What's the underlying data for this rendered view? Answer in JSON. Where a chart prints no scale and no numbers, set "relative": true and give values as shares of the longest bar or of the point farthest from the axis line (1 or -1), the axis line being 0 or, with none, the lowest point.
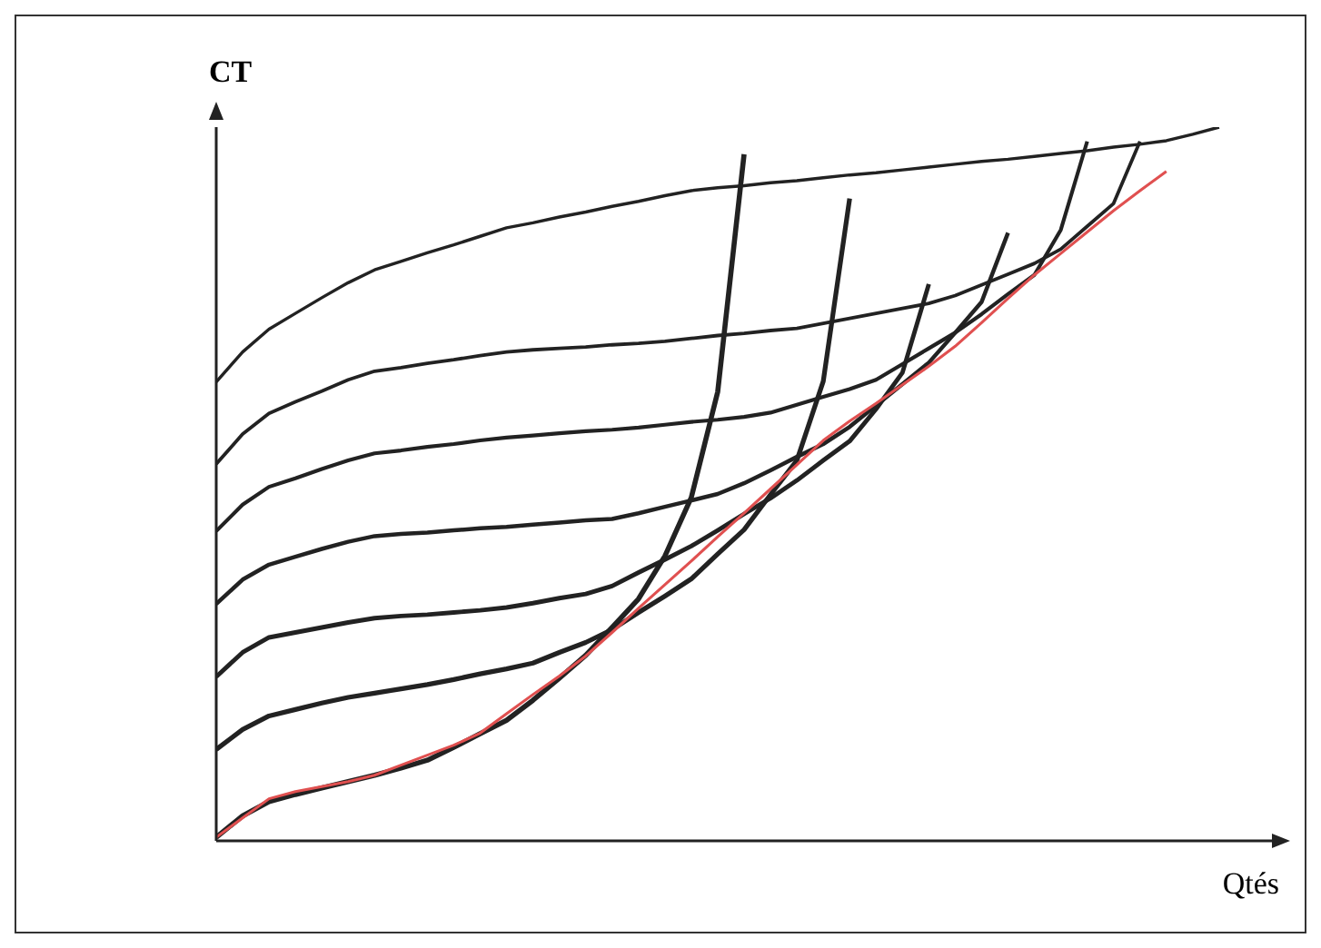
{
  "chart_data": {
    "type": "line",
    "xlabel": "Qtés",
    "ylabel": "CT",
    "relative": true,
    "marker": "none",
    "categories": [
      null,
      null,
      null,
      null,
      null,
      null,
      null,
      null,
      null,
      null,
      null,
      null,
      null,
      null,
      null,
      null,
      null,
      null,
      null,
      null,
      null,
      null,
      null,
      null,
      null,
      null,
      null,
      null,
      null,
      null,
      null,
      null,
      null,
      null,
      null,
      null,
      null,
      null,
      null,
      null,
      null
    ],
    "series": [
      {
        "color": "#222222",
        "values": [
          0.005,
          0.035,
          0.055,
          0.065,
          0.074,
          0.083,
          0.092,
          0.102,
          0.113,
          0.131,
          0.15,
          0.169,
          0.197,
          0.228,
          0.26,
          0.299,
          0.339,
          0.399,
          0.481,
          0.629,
          0.962,
          null,
          null,
          null,
          null,
          null,
          null,
          null,
          null,
          null,
          null,
          null,
          null,
          null,
          null,
          null,
          null,
          null,
          null,
          null,
          null
        ]
      },
      {
        "color": "#222222",
        "values": [
          0.128,
          0.156,
          0.175,
          0.184,
          0.193,
          0.201,
          0.207,
          0.213,
          0.219,
          0.226,
          0.234,
          0.241,
          0.249,
          0.264,
          0.278,
          0.296,
          0.32,
          0.343,
          0.367,
          0.402,
          0.436,
          0.485,
          0.533,
          0.644,
          0.9,
          null,
          null,
          null,
          null,
          null,
          null,
          null,
          null,
          null,
          null,
          null,
          null,
          null,
          null,
          null,
          null
        ]
      },
      {
        "color": "#222222",
        "values": [
          0.23,
          0.264,
          0.285,
          0.292,
          0.299,
          0.306,
          0.312,
          0.315,
          0.317,
          0.32,
          0.323,
          0.327,
          0.333,
          0.34,
          0.346,
          0.357,
          0.376,
          0.394,
          0.413,
          0.435,
          0.458,
          0.48,
          0.505,
          0.533,
          0.56,
          0.605,
          0.656,
          0.78,
          null,
          null,
          null,
          null,
          null,
          null,
          null,
          null,
          null,
          null,
          null,
          null,
          null
        ]
      },
      {
        "color": "#222222",
        "values": [
          0.332,
          0.366,
          0.387,
          0.398,
          0.409,
          0.419,
          0.427,
          0.43,
          0.432,
          0.435,
          0.438,
          0.44,
          0.443,
          0.446,
          0.449,
          0.451,
          0.459,
          0.468,
          0.477,
          0.486,
          0.501,
          0.519,
          0.538,
          0.556,
          0.58,
          0.61,
          0.64,
          0.67,
          0.712,
          0.755,
          0.852,
          null,
          null,
          null,
          null,
          null,
          null,
          null,
          null,
          null,
          null
        ]
      },
      {
        "color": "#222222",
        "values": [
          0.434,
          0.471,
          0.496,
          0.508,
          0.521,
          0.533,
          0.543,
          0.547,
          0.552,
          0.556,
          0.561,
          0.565,
          0.568,
          0.571,
          0.574,
          0.576,
          0.579,
          0.583,
          0.587,
          0.59,
          0.594,
          0.6,
          0.611,
          0.622,
          0.633,
          0.646,
          0.668,
          0.69,
          0.712,
          0.738,
          0.766,
          0.793,
          0.856,
          0.98,
          null,
          null,
          null,
          null,
          null,
          null,
          null
        ]
      },
      {
        "color": "#222222",
        "values": [
          0.528,
          0.57,
          0.599,
          0.615,
          0.63,
          0.646,
          0.658,
          0.663,
          0.669,
          0.674,
          0.68,
          0.685,
          0.688,
          0.69,
          0.692,
          0.695,
          0.697,
          0.7,
          0.704,
          0.708,
          0.711,
          0.715,
          0.718,
          0.725,
          0.732,
          0.739,
          0.746,
          0.753,
          0.764,
          0.779,
          0.794,
          0.809,
          0.829,
          0.861,
          0.893,
          0.98,
          null,
          null,
          null,
          null,
          null
        ]
      },
      {
        "color": "#222222",
        "values": [
          0.643,
          0.685,
          0.717,
          0.739,
          0.761,
          0.782,
          0.8,
          0.812,
          0.824,
          0.835,
          0.847,
          0.859,
          0.866,
          0.874,
          0.881,
          0.889,
          0.896,
          0.904,
          0.911,
          0.915,
          0.918,
          0.922,
          0.925,
          0.929,
          0.933,
          0.936,
          0.94,
          0.944,
          0.948,
          0.952,
          0.955,
          0.959,
          0.963,
          0.967,
          0.972,
          0.976,
          0.981,
          0.99,
          1,
          null,
          null
        ]
      },
      {
        "color": "#e05050",
        "values": [
          0.005,
          0.032,
          0.059,
          0.069,
          0.076,
          0.083,
          0.092,
          0.106,
          0.12,
          0.134,
          0.151,
          0.178,
          0.205,
          0.231,
          0.259,
          0.292,
          0.326,
          0.359,
          0.392,
          0.426,
          0.459,
          0.493,
          0.527,
          0.561,
          0.588,
          0.613,
          0.639,
          0.665,
          0.693,
          0.726,
          0.76,
          0.793,
          0.823,
          0.853,
          0.883,
          0.911,
          0.938,
          null,
          null,
          null,
          null
        ]
      }
    ]
  }
}
